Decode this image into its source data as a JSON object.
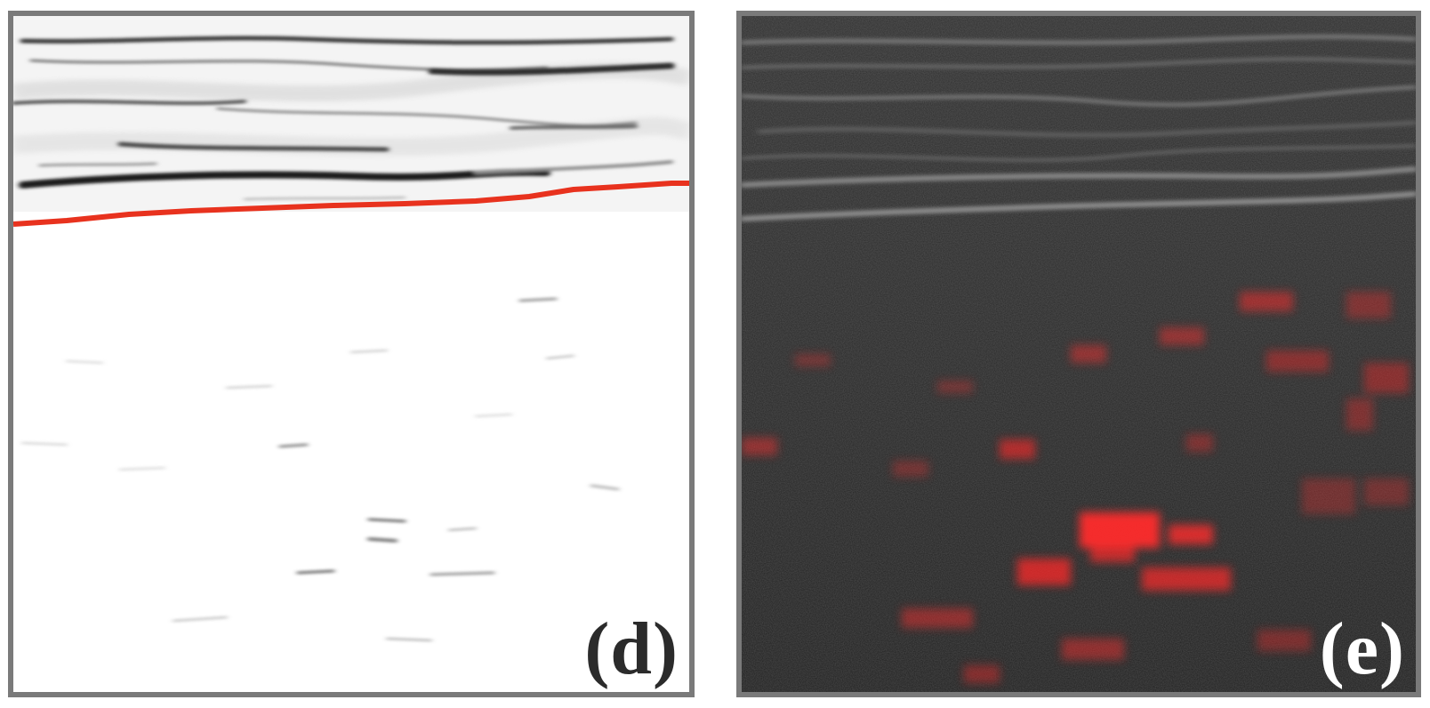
{
  "panels": [
    {
      "label": "(d)",
      "description_color": "#ffffff",
      "boundary_line_color": "#e8321e"
    },
    {
      "label": "(e)",
      "description_color": "#262626",
      "heatmap_color": "#ff2a2a"
    }
  ],
  "colors": {
    "border": "#7a7a7a",
    "boundary_line": "#e8321e",
    "overlay_hotspot": "#ff2a2a"
  }
}
